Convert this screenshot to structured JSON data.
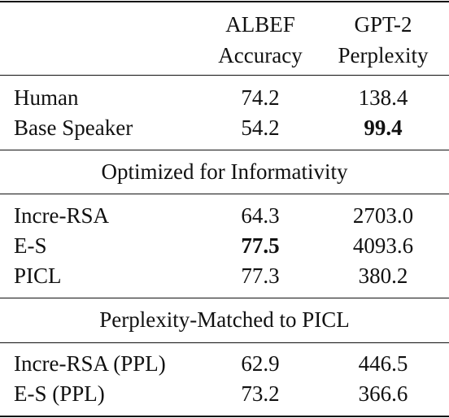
{
  "headers": {
    "col1_line1": "ALBEF",
    "col1_line2": "Accuracy",
    "col2_line1": "GPT-2",
    "col2_line2": "Perplexity"
  },
  "groups": [
    {
      "title": "",
      "rows": [
        {
          "label": "Human",
          "accuracy": "74.2",
          "perplexity": "138.4"
        },
        {
          "label": "Base Speaker",
          "accuracy": "54.2",
          "perplexity": "99.4",
          "bold": "perplexity"
        }
      ]
    },
    {
      "title": "Optimized for Informativity",
      "rows": [
        {
          "label": "Incre-RSA",
          "accuracy": "64.3",
          "perplexity": "2703.0"
        },
        {
          "label": "E-S",
          "accuracy": "77.5",
          "perplexity": "4093.6",
          "bold": "accuracy"
        },
        {
          "label": "PICL",
          "accuracy": "77.3",
          "perplexity": "380.2"
        }
      ]
    },
    {
      "title": "Perplexity-Matched to PICL",
      "rows": [
        {
          "label": "Incre-RSA (PPL)",
          "accuracy": "62.9",
          "perplexity": "446.5"
        },
        {
          "label": "E-S (PPL)",
          "accuracy": "73.2",
          "perplexity": "366.6"
        }
      ]
    }
  ]
}
